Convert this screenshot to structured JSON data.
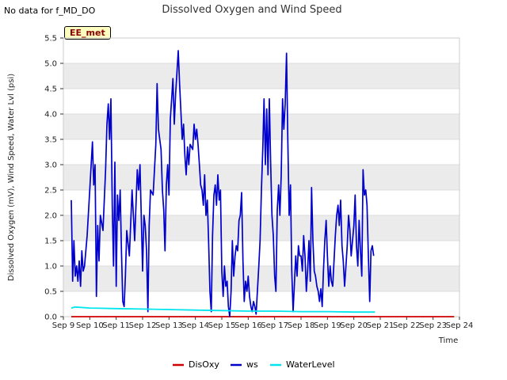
{
  "page": {
    "corner_note": "No data for f_MD_DO",
    "station_badge": "EE_met"
  },
  "chart_data": {
    "type": "line",
    "title": "Dissolved Oxygen and Wind Speed",
    "xlabel": "Time",
    "ylabel": "Dissolved Oxygen (mV), Wind Speed, Water Lvl (psi)",
    "x_range": [
      0,
      15
    ],
    "ylim": [
      0,
      5.5
    ],
    "x_ticks": [
      "Sep 9",
      "Sep 10",
      "Sep 11",
      "Sep 12",
      "Sep 13",
      "Sep 14",
      "Sep 15",
      "Sep 16",
      "Sep 17",
      "Sep 18",
      "Sep 19",
      "Sep 20",
      "Sep 21",
      "Sep 22",
      "Sep 23",
      "Sep 24"
    ],
    "y_ticks": [
      0.0,
      0.5,
      1.0,
      1.5,
      2.0,
      2.5,
      3.0,
      3.5,
      4.0,
      4.5,
      5.0,
      5.5
    ],
    "grid": true,
    "band_fill": "#ebebeb",
    "legend_position": "bottom-center",
    "series": [
      {
        "name": "DisOxy",
        "color": "#cc0000",
        "points": [
          [
            0.3,
            0.0
          ],
          [
            14.8,
            0.0
          ]
        ]
      },
      {
        "name": "ws",
        "color": "#0000cc",
        "points": [
          [
            0.3,
            2.3
          ],
          [
            0.35,
            0.7
          ],
          [
            0.4,
            1.5
          ],
          [
            0.45,
            0.8
          ],
          [
            0.5,
            1.0
          ],
          [
            0.55,
            0.7
          ],
          [
            0.6,
            1.1
          ],
          [
            0.65,
            0.6
          ],
          [
            0.7,
            1.3
          ],
          [
            0.75,
            0.9
          ],
          [
            0.8,
            1.0
          ],
          [
            0.9,
            1.6
          ],
          [
            1.0,
            2.5
          ],
          [
            1.1,
            3.45
          ],
          [
            1.15,
            2.6
          ],
          [
            1.2,
            3.0
          ],
          [
            1.25,
            0.4
          ],
          [
            1.3,
            1.8
          ],
          [
            1.35,
            1.1
          ],
          [
            1.4,
            2.0
          ],
          [
            1.5,
            1.7
          ],
          [
            1.6,
            2.9
          ],
          [
            1.65,
            3.8
          ],
          [
            1.7,
            4.2
          ],
          [
            1.75,
            3.5
          ],
          [
            1.8,
            4.3
          ],
          [
            1.85,
            2.2
          ],
          [
            1.9,
            1.0
          ],
          [
            1.95,
            3.05
          ],
          [
            2.0,
            0.6
          ],
          [
            2.05,
            2.4
          ],
          [
            2.1,
            1.9
          ],
          [
            2.15,
            2.5
          ],
          [
            2.2,
            1.3
          ],
          [
            2.25,
            0.3
          ],
          [
            2.3,
            0.2
          ],
          [
            2.35,
            0.8
          ],
          [
            2.4,
            1.7
          ],
          [
            2.5,
            1.2
          ],
          [
            2.6,
            2.5
          ],
          [
            2.7,
            1.5
          ],
          [
            2.8,
            2.9
          ],
          [
            2.85,
            2.5
          ],
          [
            2.9,
            3.0
          ],
          [
            2.95,
            2.0
          ],
          [
            3.0,
            0.9
          ],
          [
            3.05,
            2.0
          ],
          [
            3.1,
            1.8
          ],
          [
            3.15,
            1.3
          ],
          [
            3.2,
            0.1
          ],
          [
            3.25,
            1.8
          ],
          [
            3.3,
            2.5
          ],
          [
            3.4,
            2.4
          ],
          [
            3.45,
            2.9
          ],
          [
            3.5,
            3.4
          ],
          [
            3.55,
            4.6
          ],
          [
            3.6,
            3.7
          ],
          [
            3.7,
            3.3
          ],
          [
            3.75,
            2.5
          ],
          [
            3.8,
            2.1
          ],
          [
            3.85,
            1.3
          ],
          [
            3.9,
            2.6
          ],
          [
            3.95,
            3.0
          ],
          [
            4.0,
            2.4
          ],
          [
            4.05,
            3.9
          ],
          [
            4.1,
            4.3
          ],
          [
            4.15,
            4.7
          ],
          [
            4.2,
            3.8
          ],
          [
            4.25,
            4.4
          ],
          [
            4.3,
            4.8
          ],
          [
            4.35,
            5.25
          ],
          [
            4.4,
            4.6
          ],
          [
            4.5,
            3.5
          ],
          [
            4.55,
            3.8
          ],
          [
            4.6,
            3.2
          ],
          [
            4.65,
            2.8
          ],
          [
            4.7,
            3.35
          ],
          [
            4.75,
            3.0
          ],
          [
            4.8,
            3.4
          ],
          [
            4.9,
            3.3
          ],
          [
            4.95,
            3.8
          ],
          [
            5.0,
            3.5
          ],
          [
            5.05,
            3.7
          ],
          [
            5.1,
            3.4
          ],
          [
            5.15,
            3.0
          ],
          [
            5.2,
            2.6
          ],
          [
            5.25,
            2.5
          ],
          [
            5.3,
            2.2
          ],
          [
            5.35,
            2.8
          ],
          [
            5.4,
            2.0
          ],
          [
            5.45,
            2.3
          ],
          [
            5.5,
            1.5
          ],
          [
            5.55,
            0.5
          ],
          [
            5.6,
            0.1
          ],
          [
            5.65,
            1.6
          ],
          [
            5.7,
            2.4
          ],
          [
            5.75,
            2.6
          ],
          [
            5.8,
            2.2
          ],
          [
            5.85,
            2.8
          ],
          [
            5.9,
            2.3
          ],
          [
            5.95,
            2.5
          ],
          [
            6.0,
            0.9
          ],
          [
            6.05,
            0.4
          ],
          [
            6.1,
            1.0
          ],
          [
            6.15,
            0.6
          ],
          [
            6.2,
            0.7
          ],
          [
            6.25,
            0.2
          ],
          [
            6.3,
            0.0
          ],
          [
            6.35,
            0.5
          ],
          [
            6.4,
            1.5
          ],
          [
            6.45,
            0.8
          ],
          [
            6.5,
            1.2
          ],
          [
            6.55,
            1.4
          ],
          [
            6.6,
            1.3
          ],
          [
            6.65,
            1.9
          ],
          [
            6.7,
            2.0
          ],
          [
            6.75,
            2.45
          ],
          [
            6.8,
            1.1
          ],
          [
            6.85,
            0.3
          ],
          [
            6.9,
            0.7
          ],
          [
            6.95,
            0.5
          ],
          [
            7.0,
            0.8
          ],
          [
            7.05,
            0.4
          ],
          [
            7.1,
            0.2
          ],
          [
            7.15,
            0.1
          ],
          [
            7.2,
            0.3
          ],
          [
            7.25,
            0.2
          ],
          [
            7.3,
            0.05
          ],
          [
            7.4,
            1.0
          ],
          [
            7.45,
            1.5
          ],
          [
            7.5,
            2.5
          ],
          [
            7.55,
            3.3
          ],
          [
            7.6,
            4.3
          ],
          [
            7.65,
            3.0
          ],
          [
            7.7,
            4.1
          ],
          [
            7.75,
            2.8
          ],
          [
            7.8,
            4.3
          ],
          [
            7.85,
            3.0
          ],
          [
            7.9,
            2.0
          ],
          [
            7.95,
            1.6
          ],
          [
            8.0,
            0.8
          ],
          [
            8.05,
            0.5
          ],
          [
            8.1,
            2.1
          ],
          [
            8.15,
            2.6
          ],
          [
            8.2,
            2.0
          ],
          [
            8.25,
            2.8
          ],
          [
            8.3,
            4.3
          ],
          [
            8.35,
            3.7
          ],
          [
            8.4,
            4.2
          ],
          [
            8.45,
            5.2
          ],
          [
            8.5,
            3.5
          ],
          [
            8.55,
            2.0
          ],
          [
            8.6,
            2.6
          ],
          [
            8.65,
            0.9
          ],
          [
            8.7,
            0.1
          ],
          [
            8.8,
            1.2
          ],
          [
            8.85,
            0.8
          ],
          [
            8.9,
            1.4
          ],
          [
            8.95,
            1.2
          ],
          [
            9.0,
            1.2
          ],
          [
            9.05,
            0.9
          ],
          [
            9.1,
            1.6
          ],
          [
            9.15,
            1.2
          ],
          [
            9.2,
            0.5
          ],
          [
            9.25,
            0.9
          ],
          [
            9.3,
            1.5
          ],
          [
            9.35,
            0.7
          ],
          [
            9.4,
            2.55
          ],
          [
            9.45,
            1.5
          ],
          [
            9.5,
            0.9
          ],
          [
            9.55,
            0.8
          ],
          [
            9.6,
            0.6
          ],
          [
            9.65,
            0.5
          ],
          [
            9.7,
            0.3
          ],
          [
            9.75,
            0.55
          ],
          [
            9.8,
            0.2
          ],
          [
            9.85,
            0.9
          ],
          [
            9.9,
            1.5
          ],
          [
            9.95,
            1.9
          ],
          [
            10.0,
            1.2
          ],
          [
            10.05,
            0.6
          ],
          [
            10.1,
            1.0
          ],
          [
            10.15,
            0.7
          ],
          [
            10.2,
            0.6
          ],
          [
            10.3,
            1.6
          ],
          [
            10.35,
            2.0
          ],
          [
            10.4,
            2.2
          ],
          [
            10.45,
            1.8
          ],
          [
            10.5,
            2.3
          ],
          [
            10.55,
            1.4
          ],
          [
            10.6,
            1.1
          ],
          [
            10.65,
            0.6
          ],
          [
            10.7,
            1.0
          ],
          [
            10.75,
            1.4
          ],
          [
            10.8,
            2.0
          ],
          [
            10.85,
            1.7
          ],
          [
            10.9,
            1.2
          ],
          [
            11.0,
            1.8
          ],
          [
            11.05,
            2.4
          ],
          [
            11.1,
            1.4
          ],
          [
            11.15,
            1.0
          ],
          [
            11.2,
            1.9
          ],
          [
            11.25,
            1.3
          ],
          [
            11.3,
            0.8
          ],
          [
            11.35,
            2.9
          ],
          [
            11.4,
            2.4
          ],
          [
            11.45,
            2.5
          ],
          [
            11.5,
            2.2
          ],
          [
            11.55,
            1.2
          ],
          [
            11.6,
            0.3
          ],
          [
            11.65,
            1.3
          ],
          [
            11.7,
            1.4
          ],
          [
            11.75,
            1.2
          ]
        ]
      },
      {
        "name": "WaterLevel",
        "color": "#00e5ee",
        "points": [
          [
            0.3,
            0.17
          ],
          [
            0.45,
            0.19
          ],
          [
            1.0,
            0.17
          ],
          [
            2.0,
            0.16
          ],
          [
            3.0,
            0.15
          ],
          [
            4.0,
            0.14
          ],
          [
            5.0,
            0.13
          ],
          [
            6.0,
            0.12
          ],
          [
            7.0,
            0.11
          ],
          [
            8.0,
            0.11
          ],
          [
            9.0,
            0.1
          ],
          [
            10.0,
            0.1
          ],
          [
            11.0,
            0.09
          ],
          [
            11.8,
            0.09
          ]
        ]
      }
    ]
  }
}
